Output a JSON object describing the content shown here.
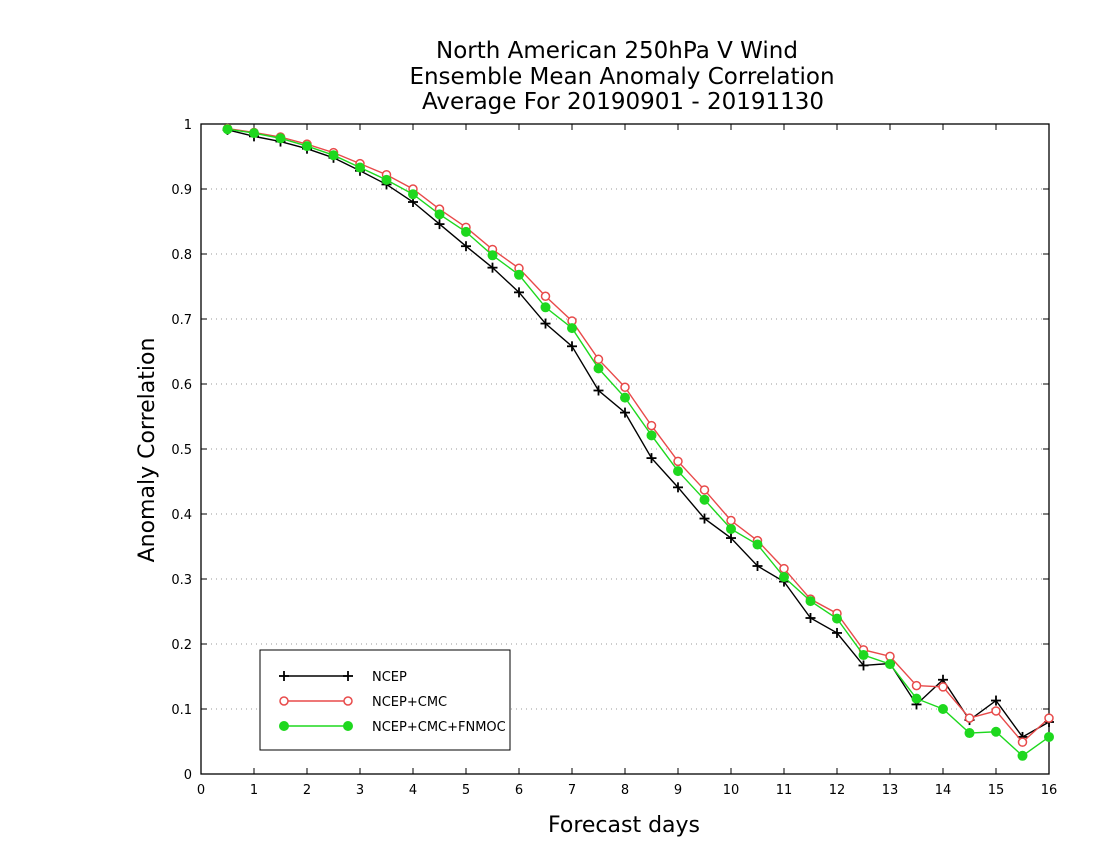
{
  "chart_data": {
    "type": "line",
    "title": [
      "North American 250hPa V Wind",
      "Ensemble Mean Anomaly Correlation",
      "Average For 20190901 - 20191130"
    ],
    "xlabel": "Forecast days",
    "ylabel": "Anomaly Correlation",
    "xlim": [
      0,
      16
    ],
    "ylim": [
      0,
      1
    ],
    "xticks": [
      "0",
      "1",
      "2",
      "3",
      "4",
      "5",
      "6",
      "7",
      "8",
      "9",
      "10",
      "11",
      "12",
      "13",
      "14",
      "15",
      "16"
    ],
    "yticks": [
      "0",
      "0.1",
      "0.2",
      "0.3",
      "0.4",
      "0.5",
      "0.6",
      "0.7",
      "0.8",
      "0.9",
      "1"
    ],
    "grid": "horizontal-dotted",
    "legend_position": "bottom-left",
    "x": [
      0.5,
      1,
      1.5,
      2,
      2.5,
      3,
      3.5,
      4,
      4.5,
      5,
      5.5,
      6,
      6.5,
      7,
      7.5,
      8,
      8.5,
      9,
      9.5,
      10,
      10.5,
      11,
      11.5,
      12,
      12.5,
      13,
      13.5,
      14,
      14.5,
      15,
      15.5,
      16
    ],
    "series": [
      {
        "name": "NCEP",
        "color": "#000000",
        "marker": "plus",
        "values": [
          0.991,
          0.981,
          0.973,
          0.962,
          0.948,
          0.928,
          0.907,
          0.88,
          0.846,
          0.812,
          0.779,
          0.741,
          0.693,
          0.658,
          0.59,
          0.556,
          0.486,
          0.441,
          0.393,
          0.363,
          0.32,
          0.296,
          0.24,
          0.217,
          0.167,
          0.17,
          0.107,
          0.145,
          0.083,
          0.113,
          0.057,
          0.08
        ]
      },
      {
        "name": "NCEP+CMC",
        "color": "#e84a4a",
        "marker": "open-circle",
        "values": [
          0.993,
          0.987,
          0.98,
          0.969,
          0.956,
          0.939,
          0.922,
          0.9,
          0.869,
          0.841,
          0.807,
          0.778,
          0.735,
          0.697,
          0.638,
          0.595,
          0.536,
          0.481,
          0.437,
          0.39,
          0.359,
          0.316,
          0.269,
          0.247,
          0.191,
          0.181,
          0.136,
          0.134,
          0.086,
          0.097,
          0.049,
          0.086
        ]
      },
      {
        "name": "NCEP+CMC+FNMOC",
        "color": "#1ed81e",
        "marker": "filled-circle",
        "values": [
          0.992,
          0.986,
          0.978,
          0.966,
          0.952,
          0.933,
          0.914,
          0.892,
          0.861,
          0.834,
          0.798,
          0.768,
          0.718,
          0.686,
          0.624,
          0.579,
          0.521,
          0.466,
          0.422,
          0.377,
          0.353,
          0.303,
          0.266,
          0.239,
          0.183,
          0.169,
          0.116,
          0.1,
          0.063,
          0.065,
          0.028,
          0.057
        ]
      }
    ]
  }
}
